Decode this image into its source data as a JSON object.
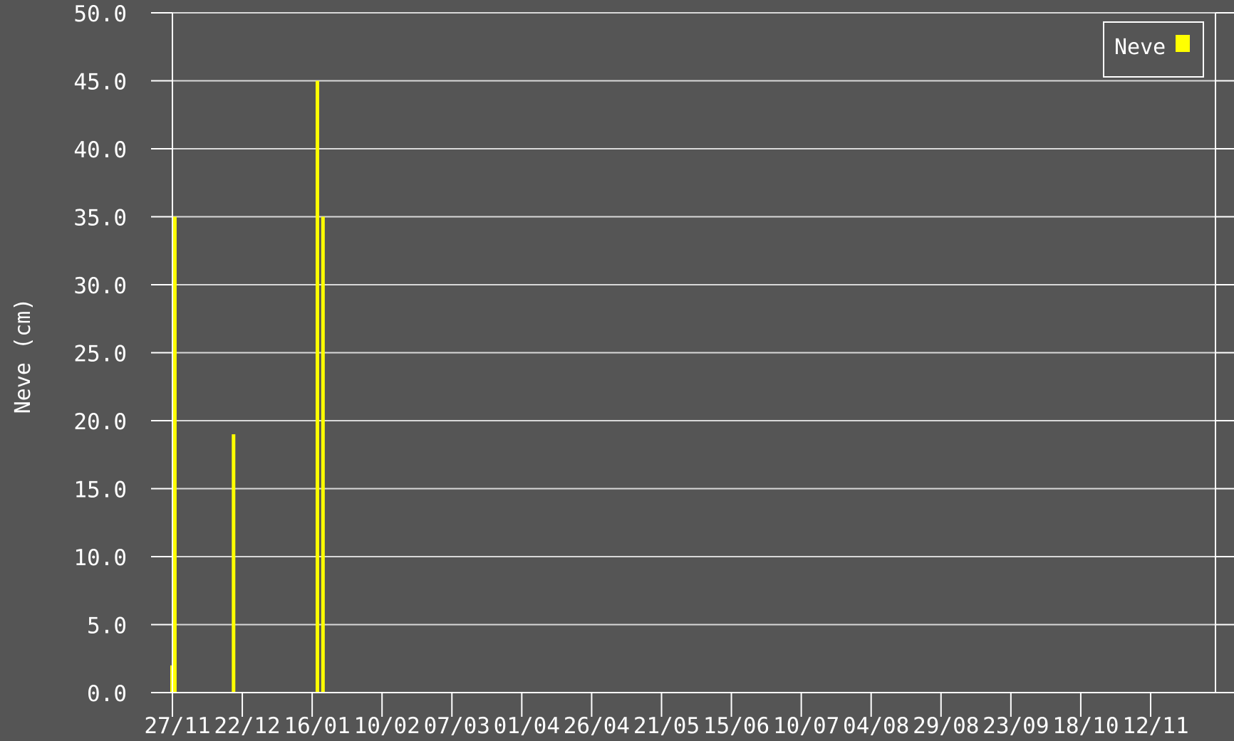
{
  "colors": {
    "background": "#555555",
    "gridline": "#d9d9d9",
    "axis": "#ffffff",
    "text": "#ffffff",
    "bar": "#ffff00"
  },
  "chart_data": {
    "type": "bar",
    "title": "",
    "xlabel": "",
    "ylabel": "Neve (cm)",
    "ylim": [
      0,
      50
    ],
    "y_ticks": [
      "0.0",
      "5.0",
      "10.0",
      "15.0",
      "20.0",
      "25.0",
      "30.0",
      "35.0",
      "40.0",
      "45.0",
      "50.0"
    ],
    "x_tick_labels": [
      "27/11",
      "22/12",
      "16/01",
      "10/02",
      "07/03",
      "01/04",
      "26/04",
      "21/05",
      "15/06",
      "10/07",
      "04/08",
      "29/08",
      "23/09",
      "18/10",
      "12/11"
    ],
    "grid": true,
    "legend": {
      "position": "top-right",
      "entries": [
        "Neve"
      ]
    },
    "series": [
      {
        "name": "Neve",
        "color": "#ffff00",
        "points": [
          {
            "date": "27/11",
            "value": 2
          },
          {
            "date": "28/11",
            "value": 35
          },
          {
            "date": "19/12",
            "value": 19
          },
          {
            "date": "18/01",
            "value": 45
          },
          {
            "date": "20/01",
            "value": 35
          }
        ]
      }
    ]
  }
}
